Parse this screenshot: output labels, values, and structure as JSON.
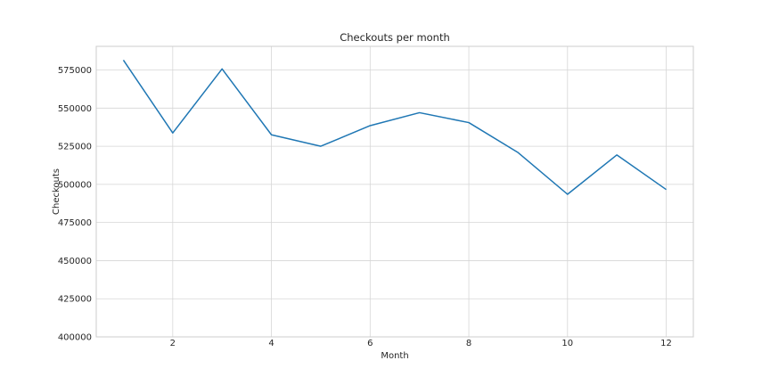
{
  "chart_data": {
    "type": "line",
    "title": "Checkouts per month",
    "xlabel": "Month",
    "ylabel": "Checkouts",
    "x": [
      1,
      2,
      3,
      4,
      5,
      6,
      7,
      8,
      9,
      10,
      11,
      12
    ],
    "series": [
      {
        "values": [
          581500,
          533700,
          575700,
          532500,
          525000,
          538500,
          547000,
          540500,
          520800,
          493500,
          519300,
          496600
        ],
        "color": "#1f77b4"
      }
    ],
    "xticks": [
      2,
      4,
      6,
      8,
      10,
      12
    ],
    "yticks": [
      400000,
      425000,
      450000,
      475000,
      500000,
      525000,
      550000,
      575000
    ],
    "xlim": [
      0.45,
      12.55
    ],
    "ylim": [
      400000,
      590500
    ],
    "grid": true
  }
}
